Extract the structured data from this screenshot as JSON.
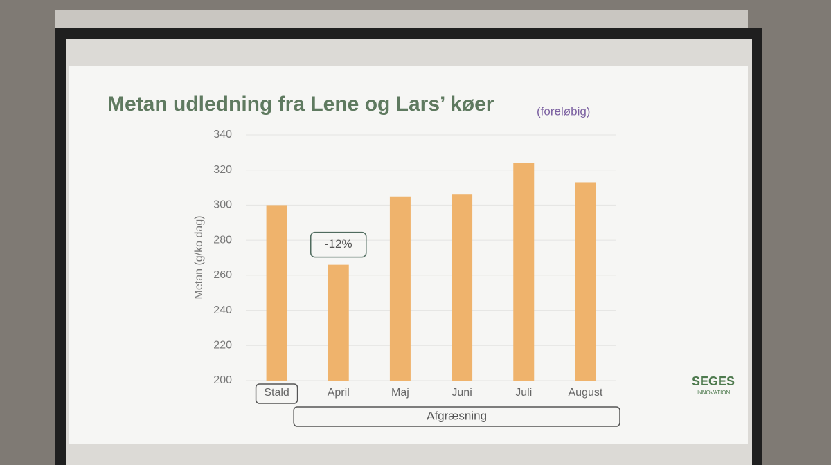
{
  "chart_data": {
    "type": "bar",
    "title": "Metan udledning fra Lene og Lars’ køer",
    "subtitle": "(foreløbig)",
    "y_label": "Metan (g/ko dag)",
    "categories": [
      "Stald",
      "April",
      "Maj",
      "Juni",
      "Juli",
      "August"
    ],
    "values": [
      300,
      266,
      305,
      306,
      324,
      313
    ],
    "color": "#efb36c",
    "ylim": [
      200,
      340
    ],
    "yticks": [
      200,
      220,
      240,
      260,
      280,
      300,
      320,
      340
    ],
    "grid": true,
    "annotation": "-12%",
    "group_label": "Afgræsning"
  },
  "logo": {
    "name": "SEGES",
    "tagline": "INNOVATION"
  }
}
